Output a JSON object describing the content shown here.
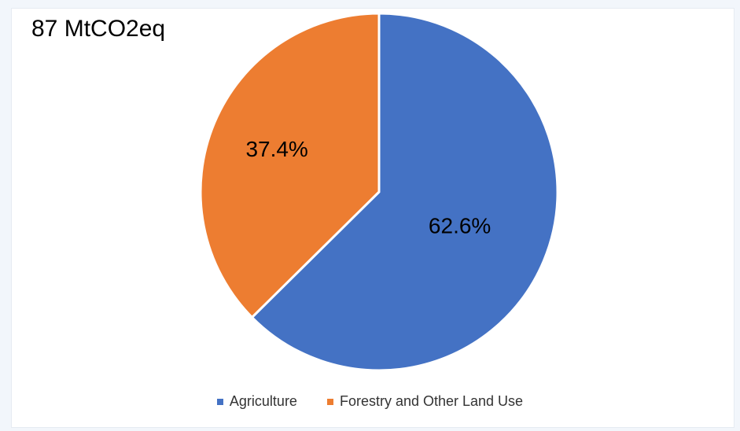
{
  "chart_data": {
    "type": "pie",
    "title": "87 MtCO2eq",
    "categories": [
      "Agriculture",
      "Forestry and Other Land Use"
    ],
    "values": [
      62.6,
      37.4
    ],
    "value_labels": [
      "62.6%",
      "37.4%"
    ],
    "colors": [
      "#4472c4",
      "#ed7d31"
    ],
    "slice_border_color": "#ffffff",
    "start_angle": "12 o'clock, clockwise",
    "legend_position": "bottom"
  }
}
